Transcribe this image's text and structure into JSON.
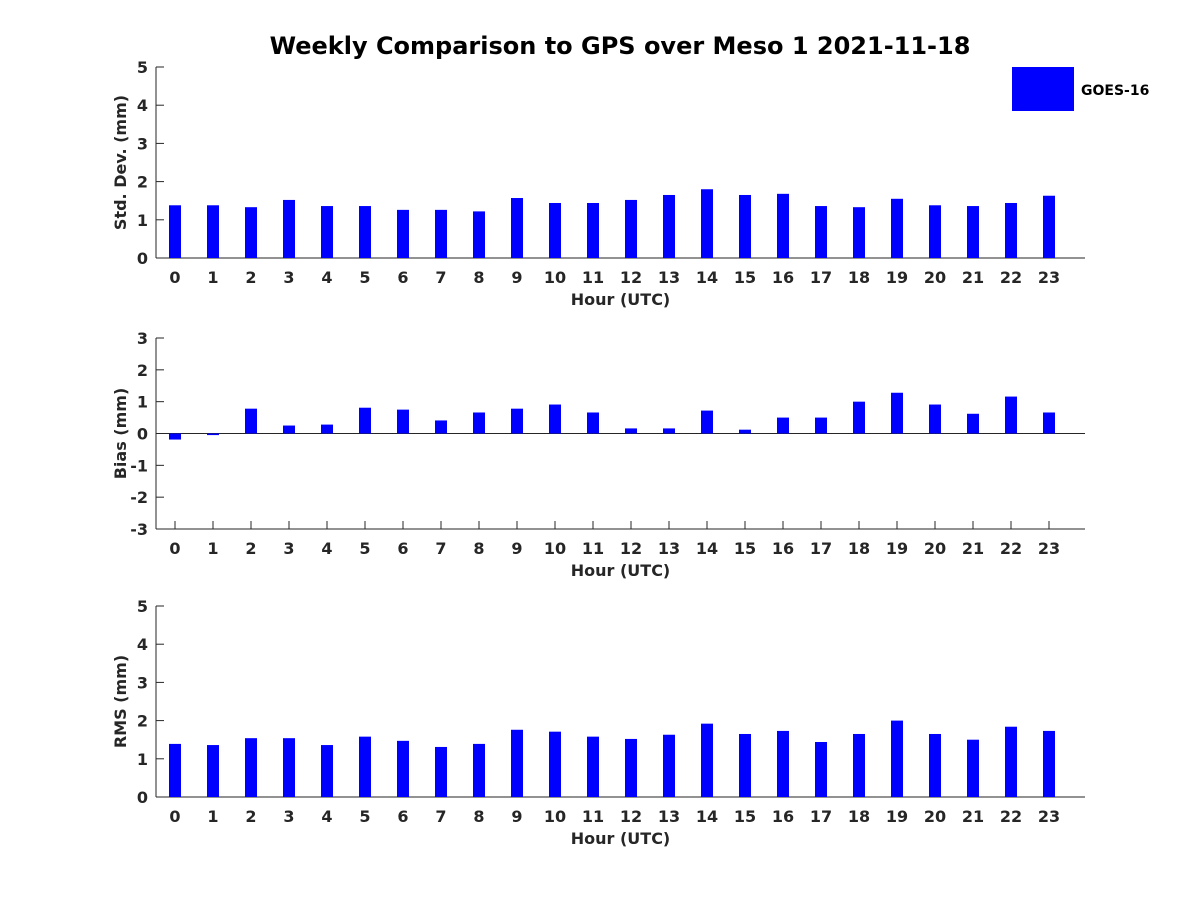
{
  "title": "Weekly Comparison to GPS over Meso 1 2021-11-18",
  "legend": {
    "label": "GOES-16",
    "color": "#0000ff",
    "placement": "top-right"
  },
  "chart_data": [
    {
      "type": "bar",
      "xlabel": "Hour (UTC)",
      "ylabel": "Std. Dev. (mm)",
      "ylim": [
        0,
        5
      ],
      "yticks": [
        "0",
        "1",
        "2",
        "3",
        "4",
        "5"
      ],
      "categories": [
        "0",
        "1",
        "2",
        "3",
        "4",
        "5",
        "6",
        "7",
        "8",
        "9",
        "10",
        "11",
        "12",
        "13",
        "14",
        "15",
        "16",
        "17",
        "18",
        "19",
        "20",
        "21",
        "22",
        "23"
      ],
      "series": [
        {
          "name": "GOES-16",
          "color": "#0000ff",
          "values": [
            1.38,
            1.38,
            1.33,
            1.52,
            1.36,
            1.36,
            1.26,
            1.26,
            1.22,
            1.57,
            1.44,
            1.44,
            1.52,
            1.65,
            1.8,
            1.65,
            1.68,
            1.36,
            1.33,
            1.55,
            1.38,
            1.36,
            1.44,
            1.63
          ]
        }
      ]
    },
    {
      "type": "bar",
      "xlabel": "Hour (UTC)",
      "ylabel": "Bias (mm)",
      "ylim": [
        -3,
        3
      ],
      "yticks": [
        "-3",
        "-2",
        "-1",
        "0",
        "1",
        "2",
        "3"
      ],
      "categories": [
        "0",
        "1",
        "2",
        "3",
        "4",
        "5",
        "6",
        "7",
        "8",
        "9",
        "10",
        "11",
        "12",
        "13",
        "14",
        "15",
        "16",
        "17",
        "18",
        "19",
        "20",
        "21",
        "22",
        "23"
      ],
      "series": [
        {
          "name": "GOES-16",
          "color": "#0000ff",
          "values": [
            -0.19,
            -0.05,
            0.78,
            0.25,
            0.28,
            0.81,
            0.75,
            0.41,
            0.66,
            0.78,
            0.91,
            0.66,
            0.16,
            0.16,
            0.72,
            0.12,
            0.5,
            0.5,
            1.0,
            1.28,
            0.91,
            0.62,
            1.16,
            0.66
          ]
        }
      ]
    },
    {
      "type": "bar",
      "xlabel": "Hour (UTC)",
      "ylabel": "RMS (mm)",
      "ylim": [
        0,
        5
      ],
      "yticks": [
        "0",
        "1",
        "2",
        "3",
        "4",
        "5"
      ],
      "categories": [
        "0",
        "1",
        "2",
        "3",
        "4",
        "5",
        "6",
        "7",
        "8",
        "9",
        "10",
        "11",
        "12",
        "13",
        "14",
        "15",
        "16",
        "17",
        "18",
        "19",
        "20",
        "21",
        "22",
        "23"
      ],
      "series": [
        {
          "name": "GOES-16",
          "color": "#0000ff",
          "values": [
            1.39,
            1.36,
            1.54,
            1.54,
            1.36,
            1.58,
            1.47,
            1.31,
            1.39,
            1.76,
            1.71,
            1.58,
            1.52,
            1.63,
            1.92,
            1.65,
            1.73,
            1.44,
            1.65,
            2.0,
            1.65,
            1.5,
            1.84,
            1.73
          ]
        }
      ]
    }
  ]
}
